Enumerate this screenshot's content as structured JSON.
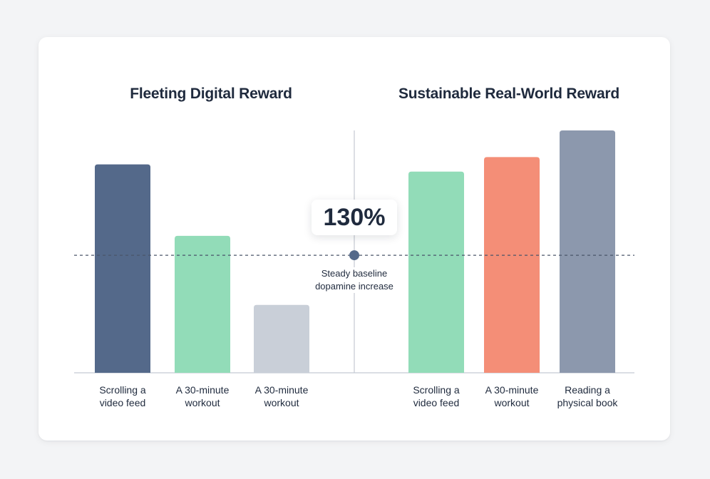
{
  "chart_data": [
    {
      "type": "bar",
      "title": "Fleeting Digital Reward",
      "categories": [
        "Scrolling a video feed",
        "A 30-minute workout",
        "A 30-minute workout"
      ],
      "values": [
        172,
        113,
        56
      ],
      "colors": [
        "#54698a",
        "#92dcb8",
        "#c9cfd8"
      ],
      "ylim": [
        0,
        200
      ],
      "grid": false
    },
    {
      "type": "bar",
      "title": "Sustainable Real-World Reward",
      "categories": [
        "Scrolling a video feed",
        "A 30-minute workout",
        "Reading a physical book"
      ],
      "values": [
        166,
        178,
        200
      ],
      "colors": [
        "#92dcb8",
        "#f48e77",
        "#8c98ad"
      ],
      "ylim": [
        0,
        200
      ],
      "grid": false
    }
  ],
  "labels": {
    "left": [
      "Scrolling a\nvideo feed",
      "A 30-minute\nworkout",
      "A 30-minute\nworkout"
    ],
    "right": [
      "Scrolling a\nvideo feed",
      "A 30-minute\nworkout",
      "Reading a\nphysical book"
    ]
  },
  "annotation": {
    "value": "130%",
    "baseline_value": 97,
    "text": "Steady baseline dopamine increase"
  },
  "colors": {
    "axis": "#cdd3dc",
    "divider": "#c4c9d1",
    "baseline": "#4a556a",
    "marker": "#54698a"
  }
}
